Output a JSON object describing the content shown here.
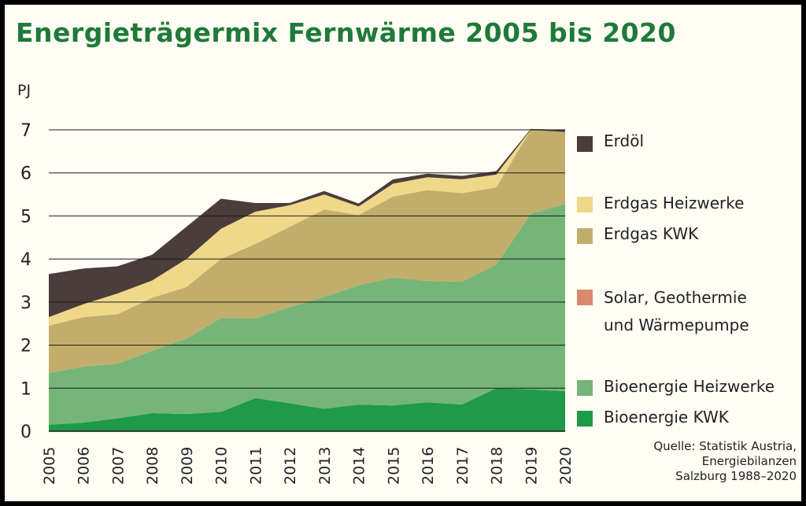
{
  "chart_data": {
    "type": "area",
    "stacked": true,
    "title": "Energieträgermix Fernwärme 2005 bis 2020",
    "ylabel": "PJ",
    "ylim": [
      0,
      7
    ],
    "yticks": [
      "0",
      "1",
      "2",
      "3",
      "4",
      "5",
      "6",
      "7"
    ],
    "grid": true,
    "legend_position": "right",
    "categories": [
      "2005",
      "2006",
      "2007",
      "2008",
      "2009",
      "2010",
      "2011",
      "2012",
      "2013",
      "2014",
      "2015",
      "2016",
      "2017",
      "2018",
      "2019",
      "2020"
    ],
    "series": [
      {
        "name": "Bioenergie KWK",
        "color": "#1e9a48",
        "values": [
          0.15,
          0.2,
          0.3,
          0.42,
          0.4,
          0.45,
          0.77,
          0.65,
          0.52,
          0.62,
          0.6,
          0.67,
          0.62,
          1.0,
          0.97,
          0.93
        ]
      },
      {
        "name": "Bioenergie Heizwerke",
        "color": "#75b578",
        "values": [
          1.2,
          1.3,
          1.27,
          1.45,
          1.75,
          2.18,
          1.85,
          2.23,
          2.6,
          2.77,
          2.97,
          2.82,
          2.85,
          2.87,
          4.08,
          4.35
        ]
      },
      {
        "name": "Solar, Geothermie und Wärmepumpe",
        "color": "#d88a6e",
        "values": [
          0,
          0,
          0,
          0,
          0,
          0,
          0,
          0,
          0,
          0,
          0,
          0,
          0,
          0,
          0,
          0
        ]
      },
      {
        "name": "Erdgas KWK",
        "color": "#c2ae6c",
        "values": [
          1.1,
          1.15,
          1.15,
          1.23,
          1.2,
          1.37,
          1.73,
          1.87,
          2.03,
          1.63,
          1.88,
          2.11,
          2.06,
          1.79,
          1.95,
          1.67
        ]
      },
      {
        "name": "Erdgas Heizwerke",
        "color": "#f0d88a",
        "values": [
          0.2,
          0.3,
          0.48,
          0.4,
          0.65,
          0.7,
          0.75,
          0.5,
          0.35,
          0.2,
          0.3,
          0.3,
          0.32,
          0.3,
          0,
          0
        ]
      },
      {
        "name": "Erdöl",
        "color": "#4a3d3a",
        "values": [
          1.0,
          0.83,
          0.63,
          0.6,
          0.75,
          0.7,
          0.2,
          0.05,
          0.08,
          0.07,
          0.1,
          0.08,
          0.08,
          0.08,
          0.02,
          0.05
        ]
      }
    ],
    "source": [
      "Quelle: Statistik Austria,",
      "Energiebilanzen",
      "Salzburg 1988–2020"
    ]
  },
  "legend_order": [
    5,
    4,
    3,
    2,
    1,
    0
  ]
}
